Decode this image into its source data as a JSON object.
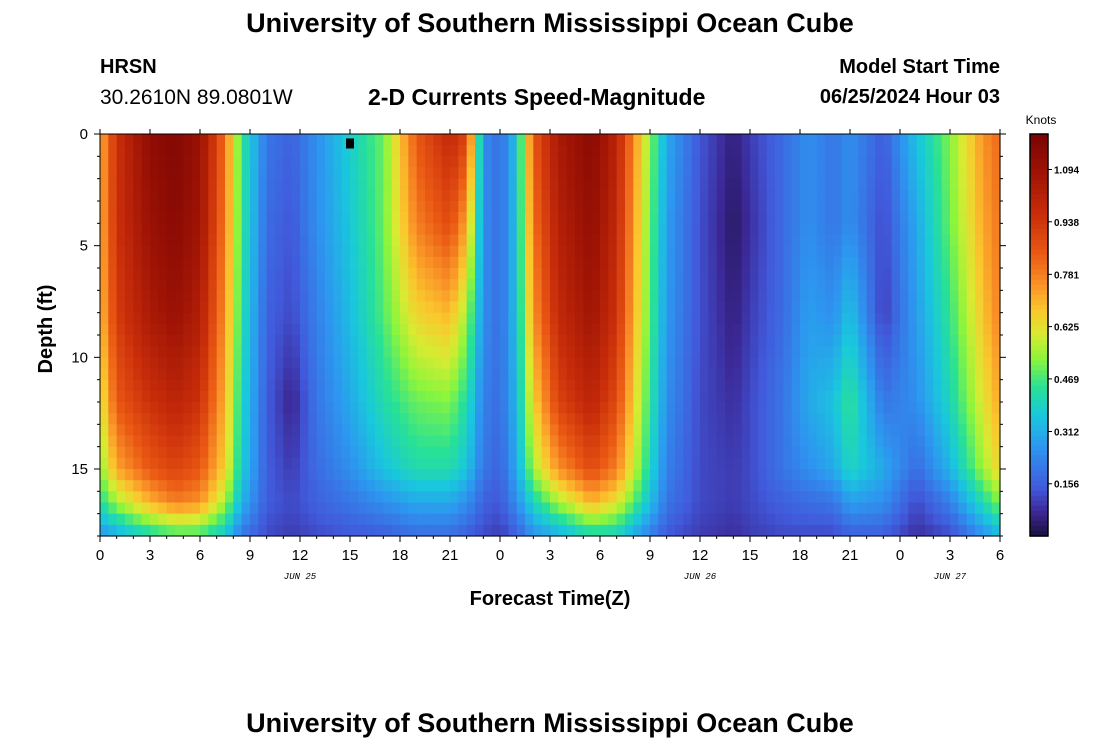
{
  "header": {
    "title": "University of Southern Mississippi Ocean Cube",
    "station": "HRSN",
    "coords": "30.2610N  89.0801W",
    "subtitle": "2-D Currents Speed-Magnitude",
    "start_label": "Model Start Time",
    "start_value": "06/25/2024 Hour 03"
  },
  "footer": {
    "title": "University of Southern Mississippi Ocean Cube"
  },
  "chart_data": {
    "type": "heatmap",
    "title": "2-D Currents Speed-Magnitude",
    "xlabel": "Forecast Time(Z)",
    "ylabel": "Depth (ft)",
    "x_range_hours": [
      0,
      54
    ],
    "x_ticks": [
      "0",
      "3",
      "6",
      "9",
      "12",
      "15",
      "18",
      "21",
      "0",
      "3",
      "6",
      "9",
      "12",
      "15",
      "18",
      "21",
      "0",
      "3",
      "6"
    ],
    "date_labels": [
      {
        "text": "JUN 25",
        "hour": 12
      },
      {
        "text": "JUN 26",
        "hour": 36
      },
      {
        "text": "JUN 27",
        "hour": 51
      }
    ],
    "y_range_ft": [
      0,
      18
    ],
    "y_ticks": [
      "0",
      "5",
      "10",
      "15"
    ],
    "colorbar": {
      "title": "Knots",
      "range": [
        0,
        1.2
      ],
      "tick_values": [
        0.156,
        0.312,
        0.469,
        0.625,
        0.781,
        0.938,
        1.094
      ],
      "tick_labels": [
        "0.156",
        "0.312",
        "0.469",
        "0.625",
        "0.781",
        "0.938",
        "1.094"
      ]
    },
    "grid": false,
    "profile_depths_ft": [
      0,
      4,
      8,
      12,
      15,
      16.5,
      18
    ],
    "profiles": [
      {
        "hour": 0,
        "speeds": [
          0.7,
          0.7,
          0.68,
          0.6,
          0.52,
          0.42,
          0.25
        ]
      },
      {
        "hour": 1,
        "speeds": [
          0.95,
          0.95,
          0.92,
          0.85,
          0.72,
          0.55,
          0.3
        ]
      },
      {
        "hour": 3,
        "speeds": [
          1.13,
          1.1,
          1.05,
          0.95,
          0.85,
          0.7,
          0.4
        ]
      },
      {
        "hour": 4.5,
        "speeds": [
          1.17,
          1.15,
          1.1,
          1.0,
          0.9,
          0.78,
          0.45
        ]
      },
      {
        "hour": 6,
        "speeds": [
          1.1,
          1.08,
          1.03,
          0.95,
          0.85,
          0.75,
          0.45
        ]
      },
      {
        "hour": 7.5,
        "speeds": [
          0.8,
          0.78,
          0.75,
          0.7,
          0.65,
          0.55,
          0.35
        ]
      },
      {
        "hour": 8.5,
        "speeds": [
          0.45,
          0.45,
          0.43,
          0.4,
          0.38,
          0.32,
          0.2
        ]
      },
      {
        "hour": 10,
        "speeds": [
          0.2,
          0.18,
          0.16,
          0.15,
          0.15,
          0.15,
          0.12
        ]
      },
      {
        "hour": 11.5,
        "speeds": [
          0.16,
          0.14,
          0.12,
          0.06,
          0.1,
          0.12,
          0.1
        ]
      },
      {
        "hour": 13,
        "speeds": [
          0.25,
          0.25,
          0.22,
          0.2,
          0.18,
          0.16,
          0.12
        ]
      },
      {
        "hour": 15,
        "speeds": [
          0.38,
          0.36,
          0.34,
          0.3,
          0.25,
          0.2,
          0.14
        ]
      },
      {
        "hour": 17,
        "speeds": [
          0.5,
          0.5,
          0.48,
          0.42,
          0.35,
          0.25,
          0.15
        ]
      },
      {
        "hour": 19,
        "speeds": [
          0.85,
          0.78,
          0.65,
          0.5,
          0.42,
          0.3,
          0.18
        ]
      },
      {
        "hour": 21,
        "speeds": [
          0.98,
          0.88,
          0.7,
          0.52,
          0.42,
          0.3,
          0.18
        ]
      },
      {
        "hour": 22,
        "speeds": [
          0.9,
          0.72,
          0.55,
          0.42,
          0.35,
          0.25,
          0.15
        ]
      },
      {
        "hour": 23,
        "speeds": [
          0.25,
          0.25,
          0.25,
          0.22,
          0.2,
          0.16,
          0.12
        ]
      },
      {
        "hour": 24,
        "speeds": [
          0.18,
          0.18,
          0.18,
          0.18,
          0.16,
          0.14,
          0.1
        ]
      },
      {
        "hour": 25,
        "speeds": [
          0.35,
          0.35,
          0.35,
          0.33,
          0.3,
          0.25,
          0.15
        ]
      },
      {
        "hour": 26,
        "speeds": [
          0.85,
          0.8,
          0.75,
          0.65,
          0.55,
          0.4,
          0.25
        ]
      },
      {
        "hour": 27.5,
        "speeds": [
          1.05,
          1.02,
          0.98,
          0.9,
          0.75,
          0.55,
          0.3
        ]
      },
      {
        "hour": 29.5,
        "speeds": [
          1.15,
          1.12,
          1.08,
          1.0,
          0.88,
          0.7,
          0.4
        ]
      },
      {
        "hour": 31,
        "speeds": [
          1.0,
          0.98,
          0.95,
          0.88,
          0.78,
          0.62,
          0.38
        ]
      },
      {
        "hour": 32.5,
        "speeds": [
          0.65,
          0.62,
          0.6,
          0.55,
          0.5,
          0.42,
          0.25
        ]
      },
      {
        "hour": 34,
        "speeds": [
          0.3,
          0.28,
          0.27,
          0.25,
          0.22,
          0.2,
          0.14
        ]
      },
      {
        "hour": 36,
        "speeds": [
          0.14,
          0.13,
          0.13,
          0.12,
          0.12,
          0.12,
          0.1
        ]
      },
      {
        "hour": 38,
        "speeds": [
          0.05,
          0.03,
          0.05,
          0.08,
          0.1,
          0.1,
          0.08
        ]
      },
      {
        "hour": 39,
        "speeds": [
          0.1,
          0.08,
          0.1,
          0.12,
          0.12,
          0.12,
          0.1
        ]
      },
      {
        "hour": 41,
        "speeds": [
          0.18,
          0.18,
          0.18,
          0.2,
          0.2,
          0.16,
          0.12
        ]
      },
      {
        "hour": 42.5,
        "speeds": [
          0.25,
          0.25,
          0.28,
          0.3,
          0.25,
          0.18,
          0.12
        ]
      },
      {
        "hour": 44,
        "speeds": [
          0.2,
          0.2,
          0.25,
          0.35,
          0.3,
          0.2,
          0.12
        ]
      },
      {
        "hour": 45,
        "speeds": [
          0.25,
          0.25,
          0.35,
          0.45,
          0.4,
          0.28,
          0.15
        ]
      },
      {
        "hour": 47,
        "speeds": [
          0.15,
          0.12,
          0.1,
          0.2,
          0.3,
          0.25,
          0.15
        ]
      },
      {
        "hour": 49,
        "speeds": [
          0.35,
          0.3,
          0.28,
          0.25,
          0.18,
          0.12,
          0.08
        ]
      },
      {
        "hour": 51,
        "speeds": [
          0.52,
          0.5,
          0.45,
          0.4,
          0.32,
          0.22,
          0.12
        ]
      },
      {
        "hour": 53,
        "speeds": [
          0.75,
          0.72,
          0.68,
          0.62,
          0.55,
          0.42,
          0.25
        ]
      },
      {
        "hour": 54,
        "speeds": [
          0.82,
          0.8,
          0.78,
          0.72,
          0.65,
          0.52,
          0.32
        ]
      }
    ],
    "marker": {
      "hour": 15,
      "depth_ft": 0.2
    }
  }
}
